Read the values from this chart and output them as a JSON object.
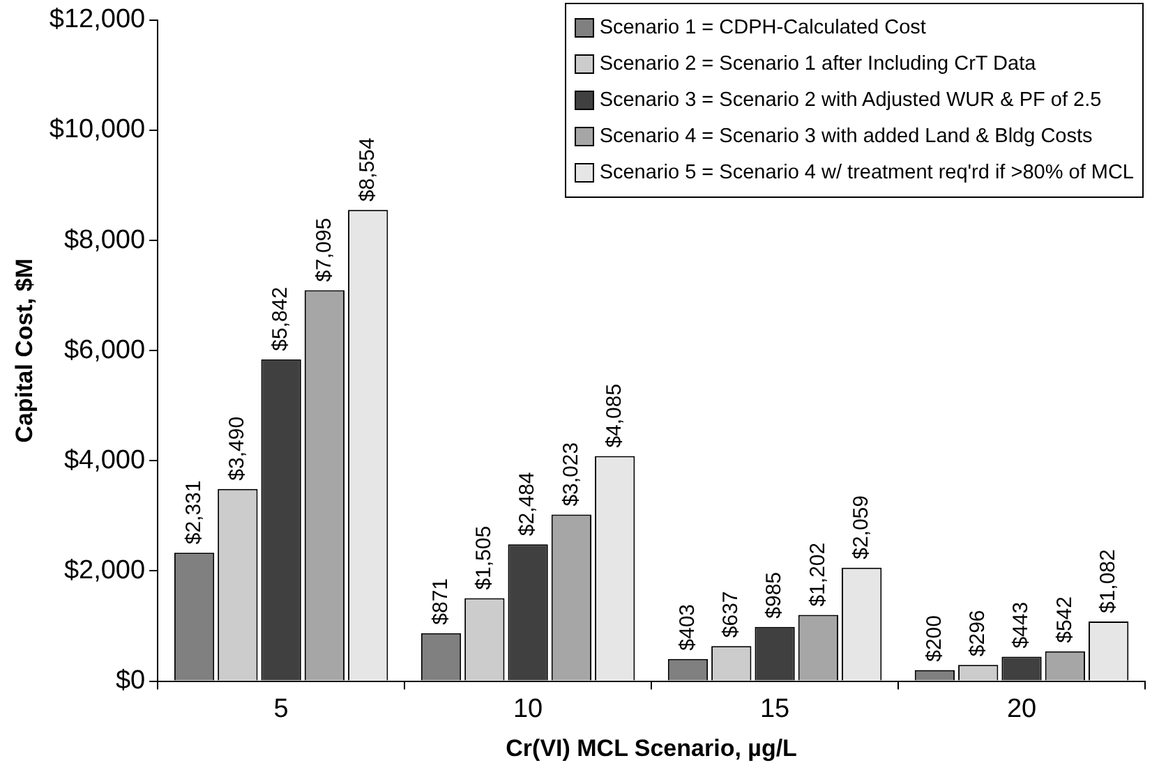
{
  "chart_data": {
    "type": "bar",
    "xlabel": "Cr(VI) MCL Scenario, µg/L",
    "ylabel": "Capital Cost, $M",
    "categories": [
      "5",
      "10",
      "15",
      "20"
    ],
    "ylim": [
      0,
      12000
    ],
    "yticks": [
      {
        "value": 0,
        "label": "$0"
      },
      {
        "value": 2000,
        "label": "$2,000"
      },
      {
        "value": 4000,
        "label": "$4,000"
      },
      {
        "value": 6000,
        "label": "$6,000"
      },
      {
        "value": 8000,
        "label": "$8,000"
      },
      {
        "value": 10000,
        "label": "$10,000"
      },
      {
        "value": 12000,
        "label": "$12,000"
      }
    ],
    "grid": false,
    "legend": "top right",
    "series": [
      {
        "name": "Scenario 1 = CDPH-Calculated Cost",
        "color": "#808080",
        "values": [
          2331,
          871,
          403,
          200
        ],
        "value_labels": [
          "$2,331",
          "$871",
          "$403",
          "$200"
        ]
      },
      {
        "name": "Scenario 2 = Scenario 1 after Including CrT Data",
        "color": "#cccccc",
        "values": [
          3490,
          1505,
          637,
          296
        ],
        "value_labels": [
          "$3,490",
          "$1,505",
          "$637",
          "$296"
        ]
      },
      {
        "name": "Scenario 3 = Scenario 2 with Adjusted WUR & PF of 2.5",
        "color": "#404040",
        "values": [
          5842,
          2484,
          985,
          443
        ],
        "value_labels": [
          "$5,842",
          "$2,484",
          "$985",
          "$443"
        ]
      },
      {
        "name": "Scenario 4 = Scenario 3 with added Land & Bldg Costs",
        "color": "#a6a6a6",
        "values": [
          7095,
          3023,
          1202,
          542
        ],
        "value_labels": [
          "$7,095",
          "$3,023",
          "$1,202",
          "$542"
        ]
      },
      {
        "name": "Scenario 5 = Scenario 4 w/ treatment req'rd if >80% of MCL",
        "color": "#e6e6e6",
        "values": [
          8554,
          4085,
          2059,
          1082
        ],
        "value_labels": [
          "$8,554",
          "$4,085",
          "$2,059",
          "$1,082"
        ]
      }
    ]
  }
}
